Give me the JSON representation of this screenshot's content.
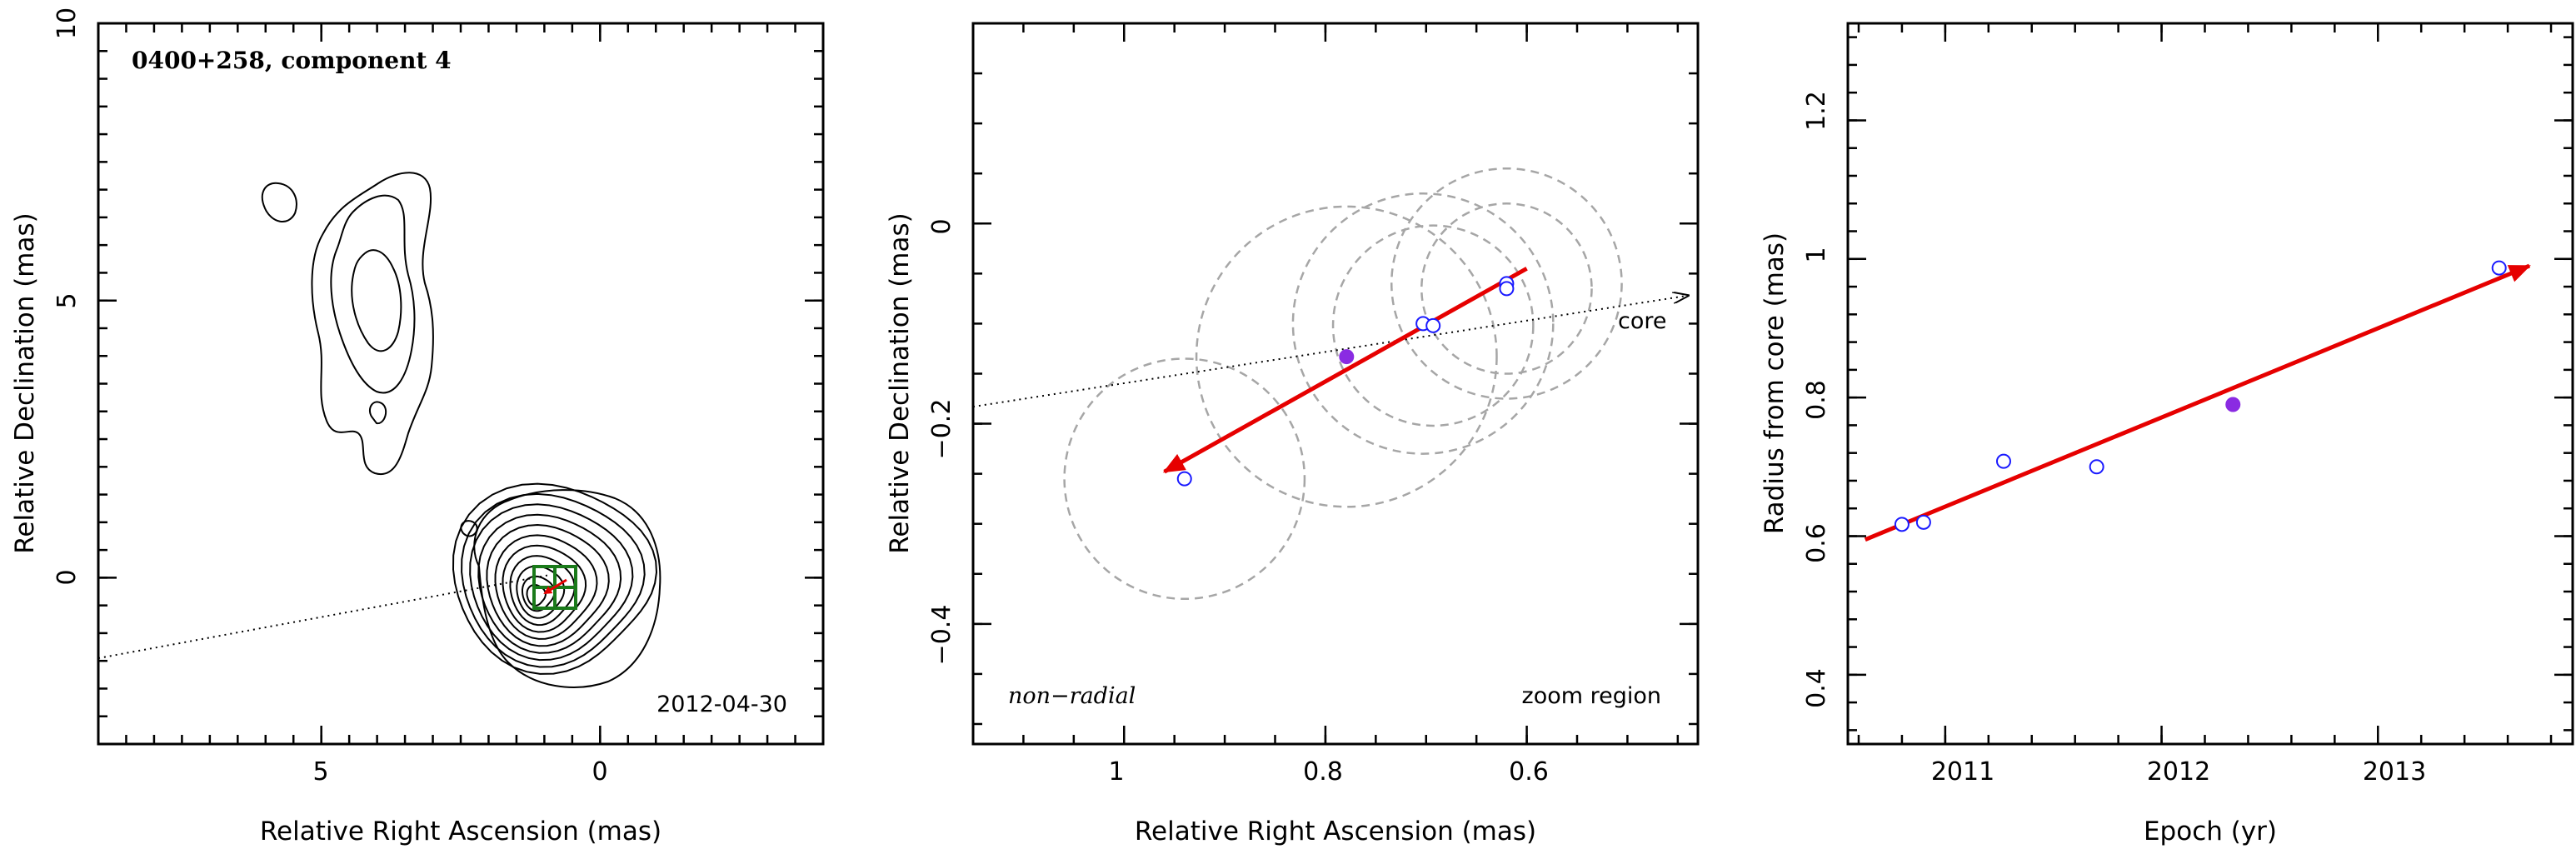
{
  "chart_data": [
    {
      "type": "contour",
      "title": "0400+258, component 4",
      "date_label": "2012-04-30",
      "xlabel": "Relative Right Ascension (mas)",
      "ylabel": "Relative Declination (mas)",
      "xlim": [
        9,
        -4
      ],
      "ylim": [
        -3,
        10
      ],
      "xticks": [
        "5",
        "0"
      ],
      "yticks": [
        "0",
        "5",
        "10"
      ],
      "colors": {
        "contour": "#000000",
        "box": "#1a7a1a",
        "arrow": "#e60000",
        "direction_line": "#000000"
      }
    },
    {
      "type": "scatter",
      "bottom_left_label": "non−radial",
      "bottom_right_label": "zoom region",
      "core_label": "core",
      "xlabel": "Relative Right Ascension (mas)",
      "ylabel": "Relative Declination (mas)",
      "xlim": [
        1.15,
        0.43
      ],
      "ylim": [
        -0.52,
        0.2
      ],
      "xticks": [
        "1",
        "0.8",
        "0.6"
      ],
      "yticks": [
        "−0.4",
        "−0.2",
        "0"
      ],
      "points": [
        {
          "x": 0.94,
          "y": -0.255,
          "filled": false
        },
        {
          "x": 0.779,
          "y": -0.133,
          "filled": true
        },
        {
          "x": 0.703,
          "y": -0.1,
          "filled": false
        },
        {
          "x": 0.693,
          "y": -0.102,
          "filled": false
        },
        {
          "x": 0.62,
          "y": -0.06,
          "filled": false
        },
        {
          "x": 0.62,
          "y": -0.065,
          "filled": false
        }
      ],
      "fit_arrow": {
        "from": [
          0.6,
          -0.045
        ],
        "to": [
          0.96,
          -0.248
        ]
      },
      "direction_line": {
        "from": [
          1.15,
          -0.183
        ],
        "to": [
          0.44,
          -0.072
        ]
      },
      "error_circles": [
        {
          "x": 0.94,
          "y": -0.255,
          "r": 0.12
        },
        {
          "x": 0.779,
          "y": -0.133,
          "r": 0.15
        },
        {
          "x": 0.703,
          "y": -0.1,
          "r": 0.13
        },
        {
          "x": 0.693,
          "y": -0.102,
          "r": 0.1
        },
        {
          "x": 0.62,
          "y": -0.06,
          "r": 0.115
        },
        {
          "x": 0.62,
          "y": -0.065,
          "r": 0.085
        }
      ],
      "colors": {
        "points": "#1a1aff",
        "filled_point": "#8a2be2",
        "arrow": "#e60000",
        "circles": "#a6a6a6"
      }
    },
    {
      "type": "scatter",
      "xlabel": "Epoch (yr)",
      "ylabel": "Radius from core (mas)",
      "xlim": [
        2010.55,
        2013.9
      ],
      "ylim": [
        0.3,
        1.34
      ],
      "xticks": [
        "2011",
        "2012",
        "2013"
      ],
      "yticks": [
        "0.4",
        "0.6",
        "0.8",
        "1",
        "1.2"
      ],
      "points": [
        {
          "x": 2010.8,
          "y": 0.617,
          "filled": false
        },
        {
          "x": 2010.9,
          "y": 0.62,
          "filled": false
        },
        {
          "x": 2011.27,
          "y": 0.708,
          "filled": false
        },
        {
          "x": 2011.7,
          "y": 0.7,
          "filled": false
        },
        {
          "x": 2012.33,
          "y": 0.79,
          "filled": true
        },
        {
          "x": 2013.56,
          "y": 0.987,
          "filled": false
        }
      ],
      "fit_arrow": {
        "from": [
          2010.63,
          0.595
        ],
        "to": [
          2013.7,
          0.99
        ]
      },
      "colors": {
        "points": "#1a1aff",
        "filled_point": "#8a2be2",
        "arrow": "#e60000"
      }
    }
  ]
}
